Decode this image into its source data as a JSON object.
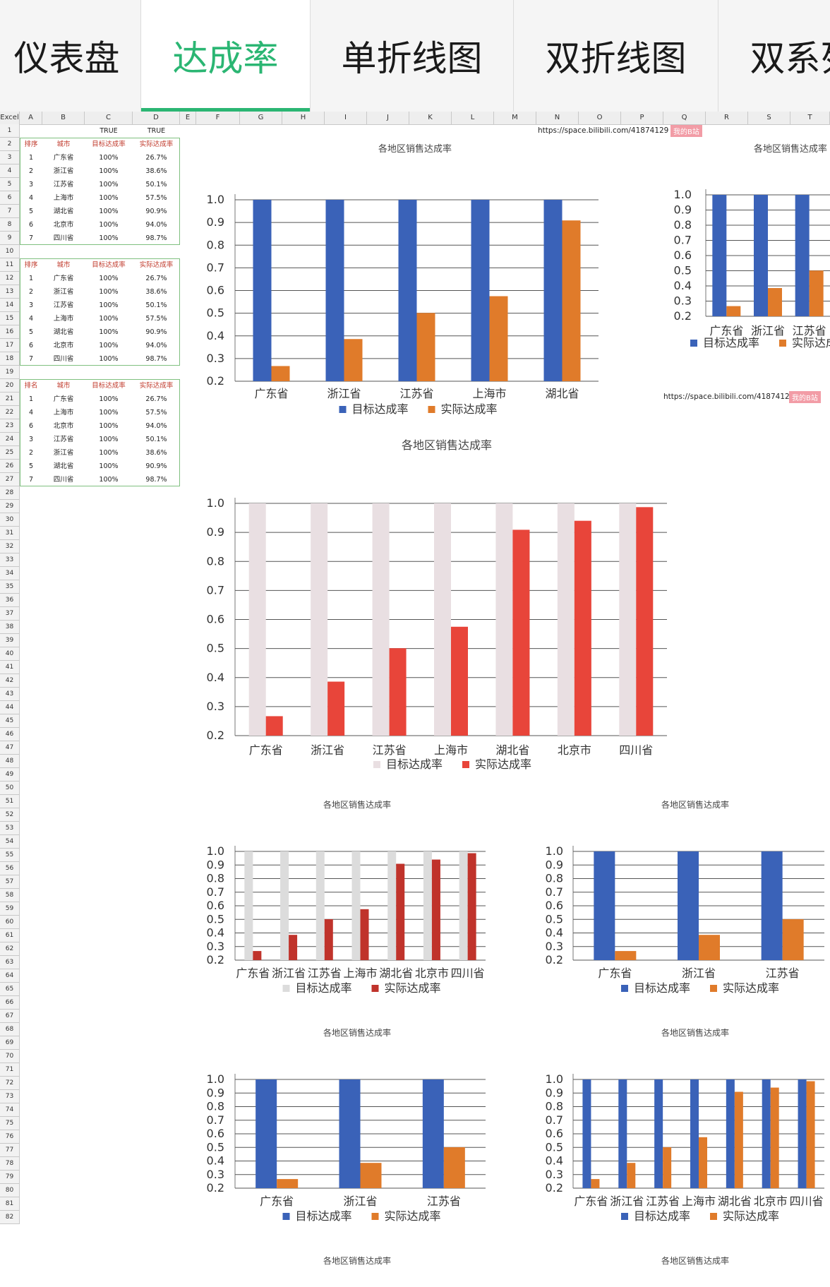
{
  "tabs": [
    {
      "label": "仪表盘",
      "active": false
    },
    {
      "label": "达成率",
      "active": true
    },
    {
      "label": "单折线图",
      "active": false
    },
    {
      "label": "双折线图",
      "active": false
    },
    {
      "label": "双系列",
      "active": false
    }
  ],
  "sheet": {
    "corner": "Excel",
    "columns": [
      "A",
      "B",
      "C",
      "D",
      "E",
      "F",
      "G",
      "H",
      "I",
      "J",
      "K",
      "L",
      "M",
      "N",
      "O",
      "P",
      "Q",
      "R",
      "S",
      "T"
    ],
    "row_count": 82,
    "true_labels": [
      "TRUE",
      "TRUE"
    ],
    "url_text": "https://space.bilibili.com/41874129",
    "pink_button": "我的B站",
    "tables": [
      {
        "headers": [
          "排序",
          "城市",
          "目标达成率",
          "实际达成率"
        ],
        "rows": [
          [
            "1",
            "广东省",
            "100%",
            "26.7%"
          ],
          [
            "2",
            "浙江省",
            "100%",
            "38.6%"
          ],
          [
            "3",
            "江苏省",
            "100%",
            "50.1%"
          ],
          [
            "4",
            "上海市",
            "100%",
            "57.5%"
          ],
          [
            "5",
            "湖北省",
            "100%",
            "90.9%"
          ],
          [
            "6",
            "北京市",
            "100%",
            "94.0%"
          ],
          [
            "7",
            "四川省",
            "100%",
            "98.7%"
          ]
        ]
      },
      {
        "headers": [
          "排序",
          "城市",
          "目标达成率",
          "实际达成率"
        ],
        "rows": [
          [
            "1",
            "广东省",
            "100%",
            "26.7%"
          ],
          [
            "2",
            "浙江省",
            "100%",
            "38.6%"
          ],
          [
            "3",
            "江苏省",
            "100%",
            "50.1%"
          ],
          [
            "4",
            "上海市",
            "100%",
            "57.5%"
          ],
          [
            "5",
            "湖北省",
            "100%",
            "90.9%"
          ],
          [
            "6",
            "北京市",
            "100%",
            "94.0%"
          ],
          [
            "7",
            "四川省",
            "100%",
            "98.7%"
          ]
        ]
      },
      {
        "headers": [
          "排名",
          "城市",
          "目标达成率",
          "实际达成率"
        ],
        "rows": [
          [
            "1",
            "广东省",
            "100%",
            "26.7%"
          ],
          [
            "4",
            "上海市",
            "100%",
            "57.5%"
          ],
          [
            "6",
            "北京市",
            "100%",
            "94.0%"
          ],
          [
            "3",
            "江苏省",
            "100%",
            "50.1%"
          ],
          [
            "2",
            "浙江省",
            "100%",
            "38.6%"
          ],
          [
            "5",
            "湖北省",
            "100%",
            "90.9%"
          ],
          [
            "7",
            "四川省",
            "100%",
            "98.7%"
          ]
        ]
      }
    ]
  },
  "chart_data": [
    {
      "type": "bar",
      "title": "各地区销售达成率",
      "categories": [
        "广东省",
        "浙江省",
        "江苏省",
        "上海市",
        "湖北省"
      ],
      "series": [
        {
          "name": "目标达成率",
          "values": [
            1,
            1,
            1,
            1,
            1
          ],
          "color": "#3a62b8"
        },
        {
          "name": "实际达成率",
          "values": [
            0.267,
            0.386,
            0.501,
            0.575,
            0.909
          ],
          "color": "#e07b2a"
        }
      ],
      "ylim": [
        0.2,
        1.0
      ],
      "yticks": [
        "0.2",
        "0.3",
        "0.4",
        "0.5",
        "0.6",
        "0.7",
        "0.8",
        "0.9",
        "1.0"
      ],
      "grid": true,
      "legend": "bottom"
    },
    {
      "type": "bar",
      "title": "各地区销售达成率",
      "categories": [
        "广东省",
        "浙江省",
        "江苏省"
      ],
      "series": [
        {
          "name": "目标达成率",
          "values": [
            1,
            1,
            1
          ],
          "color": "#3a62b8"
        },
        {
          "name": "实际达成率",
          "values": [
            0.267,
            0.386,
            0.501
          ],
          "color": "#e07b2a"
        }
      ],
      "ylim": [
        0.2,
        1.0
      ],
      "yticks": [
        "0.2",
        "0.3",
        "0.4",
        "0.5",
        "0.6",
        "0.7",
        "0.8",
        "0.9",
        "1.0"
      ],
      "grid": true,
      "legend": "bottom"
    },
    {
      "type": "bar",
      "title": "各地区销售达成率",
      "categories": [
        "广东省",
        "浙江省",
        "江苏省",
        "上海市",
        "湖北省",
        "北京市",
        "四川省"
      ],
      "series": [
        {
          "name": "目标达成率",
          "values": [
            1,
            1,
            1,
            1,
            1,
            1,
            1
          ],
          "color": "#e9dfe2"
        },
        {
          "name": "实际达成率",
          "values": [
            0.267,
            0.386,
            0.501,
            0.575,
            0.909,
            0.94,
            0.987
          ],
          "color": "#e8453a"
        }
      ],
      "ylim": [
        0.2,
        1.0
      ],
      "yticks": [
        "0.2",
        "0.3",
        "0.4",
        "0.5",
        "0.6",
        "0.7",
        "0.8",
        "0.9",
        "1.0"
      ],
      "grid": true,
      "legend": "bottom"
    },
    {
      "type": "bar",
      "title": "各地区销售达成率",
      "categories": [
        "广东省",
        "浙江省",
        "江苏省",
        "上海市",
        "湖北省",
        "北京市",
        "四川省"
      ],
      "series": [
        {
          "name": "目标达成率",
          "values": [
            1,
            1,
            1,
            1,
            1,
            1,
            1
          ],
          "color": "#dcdcdc"
        },
        {
          "name": "实际达成率",
          "values": [
            0.267,
            0.386,
            0.501,
            0.575,
            0.909,
            0.94,
            0.987
          ],
          "color": "#c0332b"
        }
      ],
      "ylim": [
        0.2,
        1.0
      ],
      "yticks": [
        "0.2",
        "0.3",
        "0.4",
        "0.5",
        "0.6",
        "0.7",
        "0.8",
        "0.9",
        "1.0"
      ],
      "grid": true,
      "legend": "bottom"
    },
    {
      "type": "bar",
      "title": "各地区销售达成率",
      "categories": [
        "广东省",
        "浙江省",
        "江苏省"
      ],
      "series": [
        {
          "name": "目标达成率",
          "values": [
            1,
            1,
            1
          ],
          "color": "#3a62b8"
        },
        {
          "name": "实际达成率",
          "values": [
            0.267,
            0.386,
            0.501
          ],
          "color": "#e07b2a"
        }
      ],
      "ylim": [
        0.2,
        1.0
      ],
      "yticks": [
        "0.2",
        "0.3",
        "0.4",
        "0.5",
        "0.6",
        "0.7",
        "0.8",
        "0.9",
        "1.0"
      ],
      "grid": true,
      "legend": "bottom"
    },
    {
      "type": "bar",
      "title": "各地区销售达成率",
      "categories": [
        "广东省",
        "浙江省",
        "江苏省"
      ],
      "series": [
        {
          "name": "目标达成率",
          "values": [
            1,
            1,
            1
          ],
          "color": "#3a62b8"
        },
        {
          "name": "实际达成率",
          "values": [
            0.267,
            0.386,
            0.501
          ],
          "color": "#e07b2a"
        }
      ],
      "ylim": [
        0.2,
        1.0
      ],
      "yticks": [
        "0.2",
        "0.3",
        "0.4",
        "0.5",
        "0.6",
        "0.7",
        "0.8",
        "0.9",
        "1.0"
      ],
      "grid": true,
      "legend": "bottom"
    },
    {
      "type": "bar",
      "title": "各地区销售达成率",
      "categories": [
        "广东省",
        "浙江省",
        "江苏省",
        "上海市",
        "湖北省",
        "北京市",
        "四川省"
      ],
      "series": [
        {
          "name": "目标达成率",
          "values": [
            1,
            1,
            1,
            1,
            1,
            1,
            1
          ],
          "color": "#3a62b8"
        },
        {
          "name": "实际达成率",
          "values": [
            0.267,
            0.386,
            0.501,
            0.575,
            0.909,
            0.94,
            0.987
          ],
          "color": "#e07b2a"
        }
      ],
      "ylim": [
        0.2,
        1.0
      ],
      "yticks": [
        "0.2",
        "0.3",
        "0.4",
        "0.5",
        "0.6",
        "0.7",
        "0.8",
        "0.9",
        "1.0"
      ],
      "grid": true,
      "legend": "bottom"
    }
  ],
  "extra_titles": [
    "各地区销售达成率",
    "各地区销售达成率"
  ]
}
